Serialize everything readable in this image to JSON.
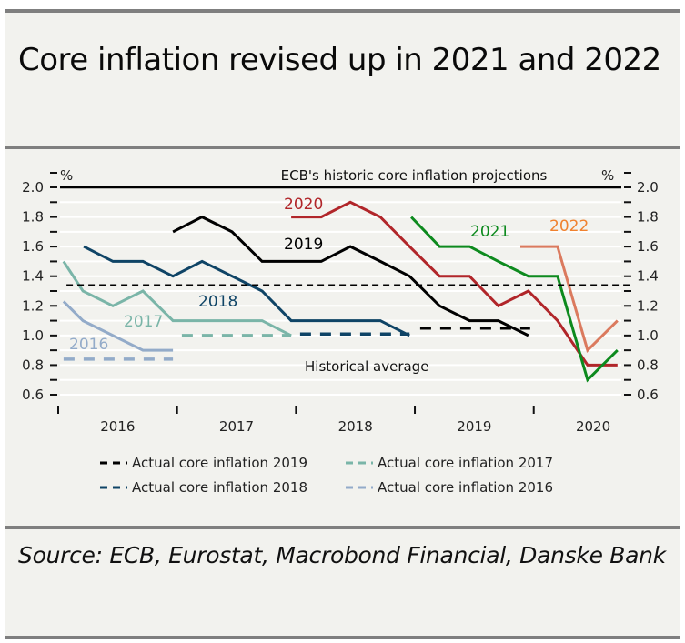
{
  "header": {
    "title": "Core inflation revised up in 2021 and 2022"
  },
  "footer": {
    "source": "Source: ECB, Eurostat, Macrobond Financial, Danske Bank"
  },
  "chart_data": {
    "type": "line",
    "title": "ECB's historic core inflation projections",
    "ylabel_left": "%",
    "ylabel_right": "%",
    "xlabel": "",
    "ylim": [
      0.6,
      2.0
    ],
    "yticks": [
      "2.0",
      "1.8",
      "1.6",
      "1.4",
      "1.2",
      "1.0",
      "0.8",
      "0.6"
    ],
    "x_unit": "quarters since start of 2016",
    "xlim": [
      0,
      19
    ],
    "x_year_boundaries": [
      0,
      4,
      8,
      12,
      16
    ],
    "x_categories": [
      "2016",
      "2017",
      "2018",
      "2019",
      "2020"
    ],
    "grid": true,
    "series": [
      {
        "name": "2016",
        "label": "2016",
        "style": "solid",
        "color": "#93abc9",
        "x": [
          0.18,
          0.83,
          1.84,
          2.85,
          3.86
        ],
        "y": [
          1.23,
          1.1,
          1.0,
          0.9,
          0.9
        ]
      },
      {
        "name": "2017",
        "label": "2017",
        "style": "solid",
        "color": "#7ab5a8",
        "x": [
          0.18,
          0.83,
          1.84,
          2.85,
          3.86,
          4.84,
          5.85,
          6.86,
          7.84
        ],
        "y": [
          1.5,
          1.3,
          1.2,
          1.3,
          1.1,
          1.1,
          1.1,
          1.1,
          1.0
        ]
      },
      {
        "name": "2018",
        "label": "2018",
        "style": "solid",
        "color": "#0f4466",
        "x": [
          0.86,
          1.84,
          2.85,
          3.86,
          4.84,
          5.85,
          6.86,
          7.84,
          8.85,
          9.83,
          10.84,
          11.82
        ],
        "y": [
          1.6,
          1.5,
          1.5,
          1.4,
          1.5,
          1.4,
          1.3,
          1.1,
          1.1,
          1.1,
          1.1,
          1.0
        ]
      },
      {
        "name": "2019",
        "label": "2019",
        "style": "solid",
        "color": "#000000",
        "x": [
          3.86,
          4.84,
          5.85,
          6.86,
          7.84,
          8.85,
          9.83,
          10.84,
          11.82,
          12.83,
          13.84,
          14.81,
          15.82
        ],
        "y": [
          1.7,
          1.8,
          1.7,
          1.5,
          1.5,
          1.5,
          1.6,
          1.5,
          1.4,
          1.2,
          1.1,
          1.1,
          1.0
        ]
      },
      {
        "name": "2020",
        "label": "2020",
        "style": "solid",
        "color": "#b1262a",
        "x": [
          7.84,
          8.85,
          9.83,
          10.84,
          11.82,
          12.83,
          13.84,
          14.81,
          15.82,
          16.8,
          17.81,
          18.82
        ],
        "y": [
          1.8,
          1.8,
          1.9,
          1.8,
          1.6,
          1.4,
          1.4,
          1.2,
          1.3,
          1.1,
          0.8,
          0.8
        ]
      },
      {
        "name": "2021",
        "label": "2021",
        "style": "solid",
        "color": "#0d8a1e",
        "x": [
          11.88,
          12.83,
          13.84,
          14.81,
          15.82,
          16.8,
          17.81,
          18.82
        ],
        "y": [
          1.8,
          1.6,
          1.6,
          1.5,
          1.4,
          1.4,
          0.7,
          0.9
        ]
      },
      {
        "name": "2022",
        "label": "2022",
        "style": "solid",
        "color": "#db7a5e",
        "x": [
          15.55,
          16.8,
          17.81,
          18.82
        ],
        "y": [
          1.6,
          1.6,
          0.9,
          1.1
        ]
      },
      {
        "name": "Historical average",
        "label": "Historical average",
        "style": "dashed",
        "color": "#000000",
        "x": [
          0.28,
          19.3
        ],
        "y": [
          1.34,
          1.34
        ]
      },
      {
        "name": "Actual core inflation 2019",
        "style": "dashed",
        "color": "#000000",
        "x": [
          12.18,
          15.88
        ],
        "y": [
          1.05,
          1.05
        ]
      },
      {
        "name": "Actual core inflation 2018",
        "style": "dashed",
        "color": "#0f4466",
        "x": [
          8.14,
          11.82
        ],
        "y": [
          1.01,
          1.01
        ]
      },
      {
        "name": "Actual core inflation 2017",
        "style": "dashed",
        "color": "#7ab5a8",
        "x": [
          4.16,
          7.84
        ],
        "y": [
          1.0,
          1.0
        ]
      },
      {
        "name": "Actual core inflation 2016",
        "style": "dashed",
        "color": "#93abc9",
        "x": [
          0.18,
          3.86
        ],
        "y": [
          0.84,
          0.84
        ]
      }
    ],
    "legend": [
      {
        "label": "Actual core inflation 2019",
        "color": "#000000"
      },
      {
        "label": "Actual core inflation 2017",
        "color": "#7ab5a8"
      },
      {
        "label": "Actual core inflation 2018",
        "color": "#0f4466"
      },
      {
        "label": "Actual core inflation 2016",
        "color": "#93abc9"
      }
    ],
    "legend_position": "bottom",
    "annotations": [
      "Historical average"
    ]
  }
}
